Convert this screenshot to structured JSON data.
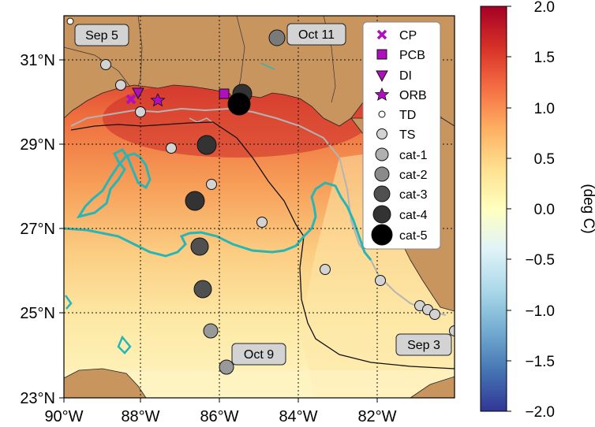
{
  "map": {
    "lon_ticks": [
      "90°W",
      "88°W",
      "86°W",
      "84°W",
      "82°W"
    ],
    "lat_ticks": [
      "31°N",
      "29°N",
      "27°N",
      "25°N",
      "23°N"
    ],
    "date_labels": [
      "Sep 5",
      "Oct 11",
      "Oct 9",
      "Sep 3"
    ],
    "colors": {
      "land": "#c8955f",
      "contour_cyan": "#26b6b6",
      "contour_gray": "#b4b4b4",
      "marker_purple": "#b00fc0"
    }
  },
  "legend": {
    "items": [
      {
        "label": "CP",
        "marker": "x-mark-icon"
      },
      {
        "label": "PCB",
        "marker": "square-icon"
      },
      {
        "label": "DI",
        "marker": "triangle-down-icon"
      },
      {
        "label": "ORB",
        "marker": "star-icon"
      },
      {
        "label": "TD",
        "marker": "circle-icon"
      },
      {
        "label": "TS",
        "marker": "circle-icon"
      },
      {
        "label": "cat-1",
        "marker": "circle-icon"
      },
      {
        "label": "cat-2",
        "marker": "circle-icon"
      },
      {
        "label": "cat-3",
        "marker": "circle-icon"
      },
      {
        "label": "cat-4",
        "marker": "circle-icon"
      },
      {
        "label": "cat-5",
        "marker": "circle-icon"
      }
    ]
  },
  "colorbar": {
    "label": "(deg C)",
    "ticks": [
      "2.0",
      "1.5",
      "1.0",
      "0.5",
      "0.0",
      "−0.5",
      "−1.0",
      "−1.5",
      "−2.0"
    ],
    "vmin": -2.0,
    "vmax": 2.0
  }
}
